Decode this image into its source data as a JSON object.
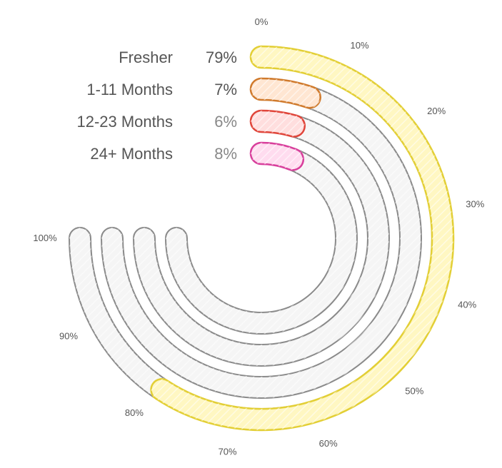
{
  "chart_data": {
    "type": "radial-bar",
    "title": "",
    "scale_max_percent": 100,
    "arc_span_degrees": 270,
    "start_angle": "top",
    "direction": "clockwise",
    "tick_labels": [
      "0%",
      "10%",
      "20%",
      "30%",
      "40%",
      "50%",
      "60%",
      "70%",
      "80%",
      "90%",
      "100%"
    ],
    "legend_placement": "top-left",
    "series": [
      {
        "name": "Fresher",
        "value": 79,
        "display": "79%",
        "stroke": "#e3cf35",
        "fill": "#fff7c2",
        "value_color": "#555555"
      },
      {
        "name": "1-11 Months",
        "value": 7,
        "display": "7%",
        "stroke": "#d07a2c",
        "fill": "#ffe6d2",
        "value_color": "#555555"
      },
      {
        "name": "12-23 Months",
        "value": 6,
        "display": "6%",
        "stroke": "#e0453a",
        "fill": "#ffdede",
        "value_color": "#888888"
      },
      {
        "name": "24+ Months",
        "value": 8,
        "display": "8%",
        "stroke": "#d83f9c",
        "fill": "#ffdcef",
        "value_color": "#888888"
      }
    ],
    "track": {
      "stroke": "#8a8a8a",
      "fill": "#f5f5f5"
    }
  }
}
